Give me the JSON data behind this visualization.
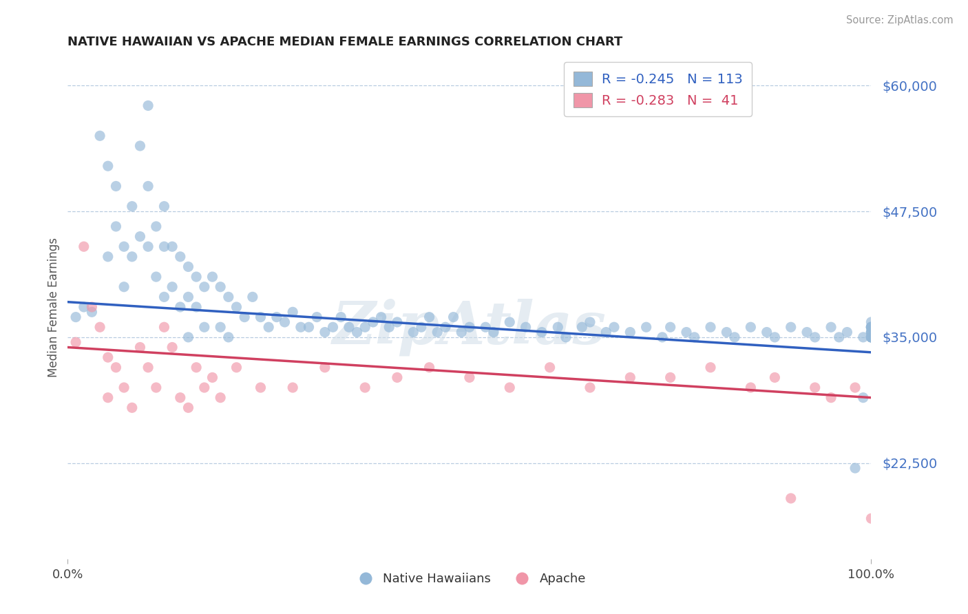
{
  "title": "NATIVE HAWAIIAN VS APACHE MEDIAN FEMALE EARNINGS CORRELATION CHART",
  "source": "Source: ZipAtlas.com",
  "ylabel": "Median Female Earnings",
  "x_min": 0.0,
  "x_max": 1.0,
  "y_min": 13000,
  "y_max": 63000,
  "yticks": [
    22500,
    35000,
    47500,
    60000
  ],
  "ytick_labels": [
    "$22,500",
    "$35,000",
    "$47,500",
    "$60,000"
  ],
  "native_hawaiians_color": "#94b8d8",
  "apache_color": "#f096a8",
  "trend_native_color": "#3060c0",
  "trend_apache_color": "#d04060",
  "watermark": "ZipAtlas",
  "background_color": "#ffffff",
  "grid_color": "#b8cce0",
  "label_color": "#4472c4",
  "native_trend_y0": 38500,
  "native_trend_y1": 33500,
  "apache_trend_y0": 34000,
  "apache_trend_y1": 29000,
  "nh_x": [
    0.01,
    0.02,
    0.03,
    0.04,
    0.05,
    0.05,
    0.06,
    0.06,
    0.07,
    0.07,
    0.08,
    0.08,
    0.09,
    0.09,
    0.1,
    0.1,
    0.1,
    0.11,
    0.11,
    0.12,
    0.12,
    0.12,
    0.13,
    0.13,
    0.14,
    0.14,
    0.15,
    0.15,
    0.15,
    0.16,
    0.16,
    0.17,
    0.17,
    0.18,
    0.19,
    0.19,
    0.2,
    0.2,
    0.21,
    0.22,
    0.23,
    0.24,
    0.25,
    0.26,
    0.27,
    0.28,
    0.29,
    0.3,
    0.31,
    0.32,
    0.33,
    0.34,
    0.35,
    0.36,
    0.37,
    0.38,
    0.39,
    0.4,
    0.41,
    0.43,
    0.44,
    0.45,
    0.46,
    0.47,
    0.48,
    0.49,
    0.5,
    0.52,
    0.53,
    0.55,
    0.57,
    0.59,
    0.61,
    0.62,
    0.64,
    0.65,
    0.67,
    0.68,
    0.7,
    0.72,
    0.74,
    0.75,
    0.77,
    0.78,
    0.8,
    0.82,
    0.83,
    0.85,
    0.87,
    0.88,
    0.9,
    0.92,
    0.93,
    0.95,
    0.96,
    0.97,
    0.98,
    0.99,
    0.99,
    1.0,
    1.0,
    1.0,
    1.0,
    1.0,
    1.0,
    1.0,
    1.0,
    1.0,
    1.0,
    1.0,
    1.0,
    1.0,
    1.0
  ],
  "nh_y": [
    37000,
    38000,
    37500,
    55000,
    52000,
    43000,
    50000,
    46000,
    44000,
    40000,
    48000,
    43000,
    54000,
    45000,
    58000,
    50000,
    44000,
    46000,
    41000,
    48000,
    44000,
    39000,
    44000,
    40000,
    43000,
    38000,
    42000,
    39000,
    35000,
    41000,
    38000,
    40000,
    36000,
    41000,
    40000,
    36000,
    39000,
    35000,
    38000,
    37000,
    39000,
    37000,
    36000,
    37000,
    36500,
    37500,
    36000,
    36000,
    37000,
    35500,
    36000,
    37000,
    36000,
    35500,
    36000,
    36500,
    37000,
    36000,
    36500,
    35500,
    36000,
    37000,
    35500,
    36000,
    37000,
    35500,
    36000,
    36000,
    35500,
    36500,
    36000,
    35500,
    36000,
    35000,
    36000,
    36500,
    35500,
    36000,
    35500,
    36000,
    35000,
    36000,
    35500,
    35000,
    36000,
    35500,
    35000,
    36000,
    35500,
    35000,
    36000,
    35500,
    35000,
    36000,
    35000,
    35500,
    22000,
    35000,
    29000,
    35500,
    35000,
    36000,
    35000,
    36000,
    35000,
    36500,
    36000,
    35000,
    36000,
    35500,
    35000,
    36000,
    35500
  ],
  "ap_x": [
    0.01,
    0.02,
    0.03,
    0.04,
    0.05,
    0.05,
    0.06,
    0.07,
    0.08,
    0.09,
    0.1,
    0.11,
    0.12,
    0.13,
    0.14,
    0.15,
    0.16,
    0.17,
    0.18,
    0.19,
    0.21,
    0.24,
    0.28,
    0.32,
    0.37,
    0.41,
    0.45,
    0.5,
    0.55,
    0.6,
    0.65,
    0.7,
    0.75,
    0.8,
    0.85,
    0.88,
    0.9,
    0.93,
    0.95,
    0.98,
    1.0
  ],
  "ap_y": [
    34500,
    44000,
    38000,
    36000,
    33000,
    29000,
    32000,
    30000,
    28000,
    34000,
    32000,
    30000,
    36000,
    34000,
    29000,
    28000,
    32000,
    30000,
    31000,
    29000,
    32000,
    30000,
    30000,
    32000,
    30000,
    31000,
    32000,
    31000,
    30000,
    32000,
    30000,
    31000,
    31000,
    32000,
    30000,
    31000,
    19000,
    30000,
    29000,
    30000,
    17000
  ]
}
